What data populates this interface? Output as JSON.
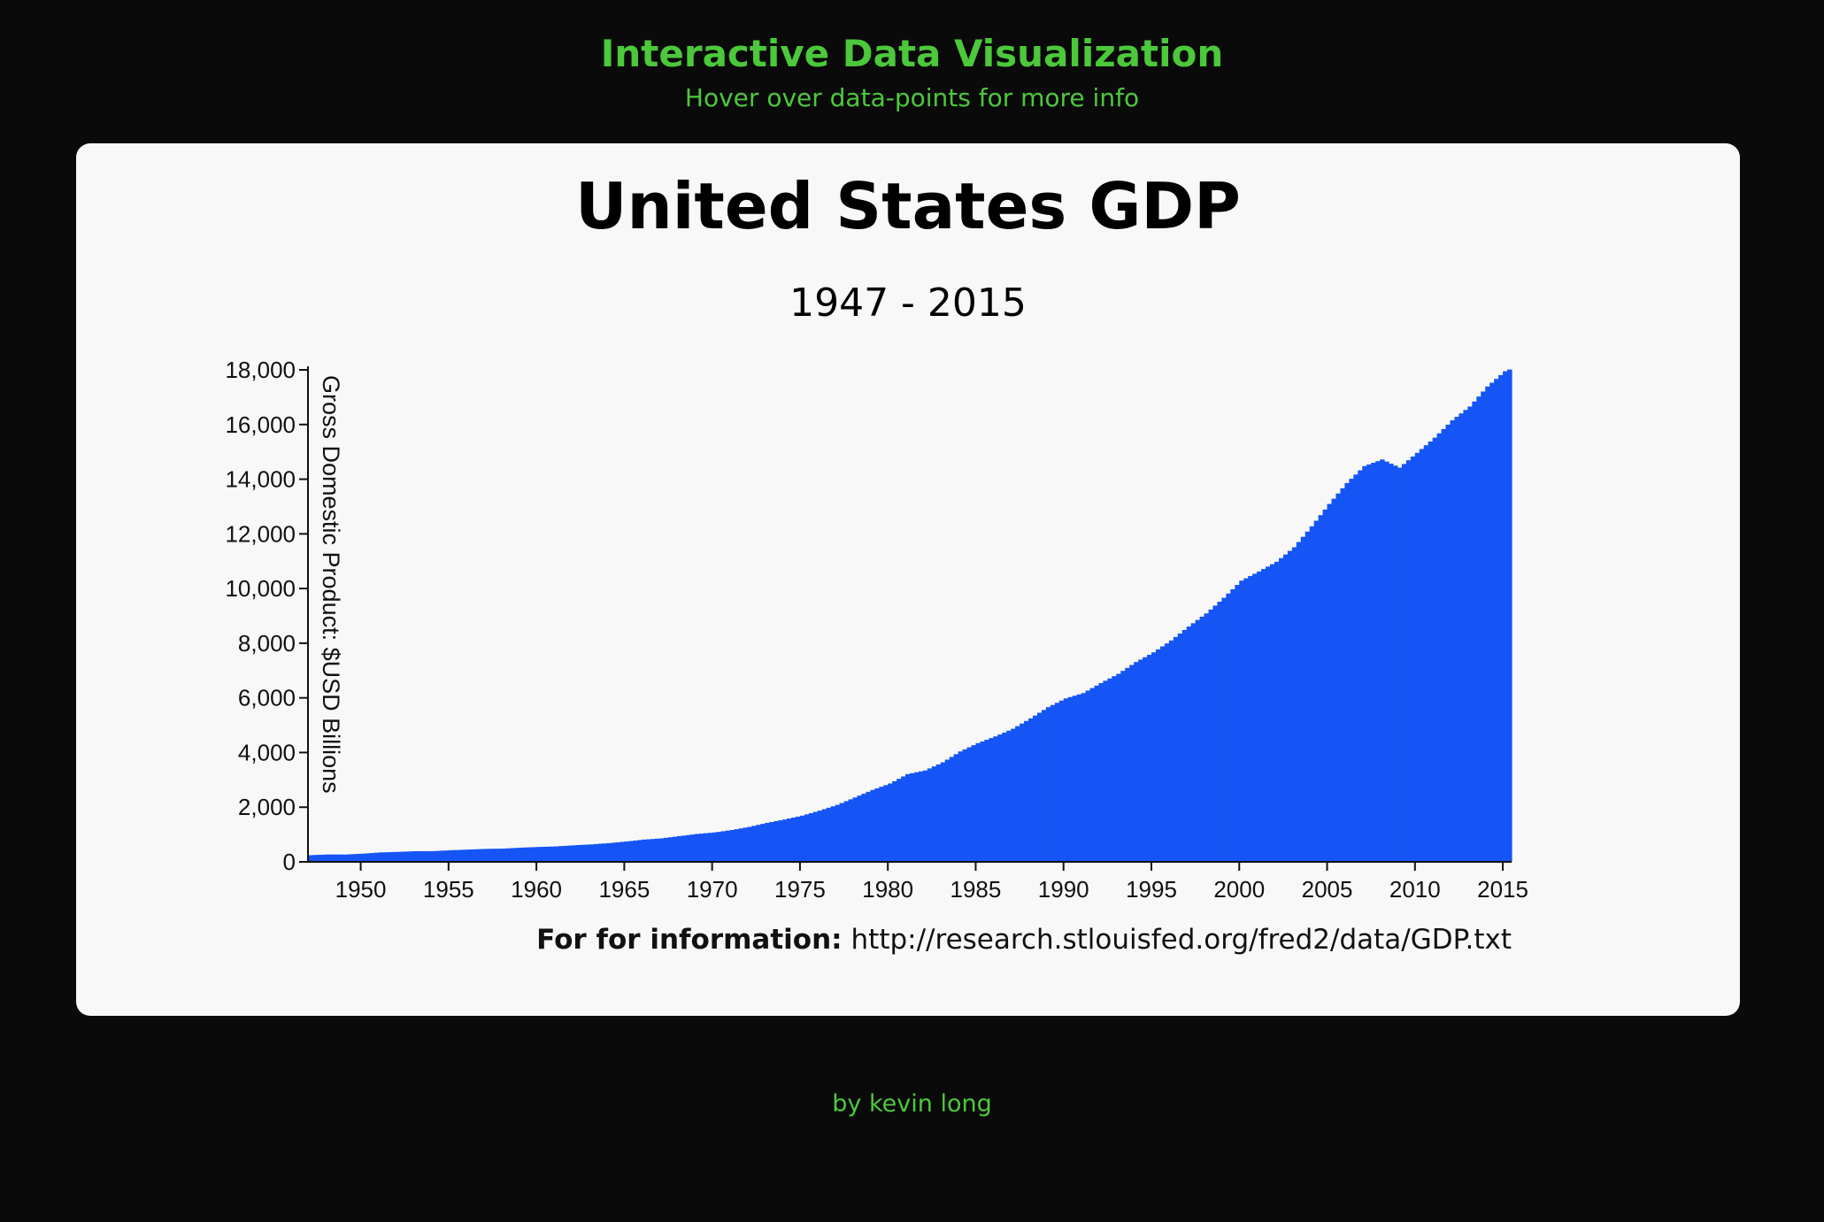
{
  "header": {
    "title": "Interactive Data Visualization",
    "subtitle": "Hover over data-points for more info"
  },
  "footer": {
    "byline": "by kevin long"
  },
  "colors": {
    "background": "#0a0a0a",
    "accent": "#4cc83b",
    "card": "#f8f8f8",
    "bar": "#1655f5"
  },
  "chart_data": {
    "type": "bar",
    "title": "United States GDP",
    "subtitle": "1947 - 2015",
    "ylabel": "Gross Domestic Product: $USD Billions",
    "xlabel": "",
    "xlim": [
      1947,
      2015.5
    ],
    "ylim": [
      0,
      18000
    ],
    "yticks": [
      0,
      2000,
      4000,
      6000,
      8000,
      10000,
      12000,
      14000,
      16000,
      18000
    ],
    "ytick_labels": [
      "0",
      "2,000",
      "4,000",
      "6,000",
      "8,000",
      "10,000",
      "12,000",
      "14,000",
      "16,000",
      "18,000"
    ],
    "xticks": [
      "1950",
      "1955",
      "1960",
      "1965",
      "1970",
      "1975",
      "1980",
      "1985",
      "1990",
      "1995",
      "2000",
      "2005",
      "2010",
      "2015"
    ],
    "frequency": "quarterly",
    "grid": false,
    "legend": "none",
    "source_label": "For for information:",
    "source_url": "http://research.stlouisfed.org/fred2/data/GDP.txt",
    "annual_values": {
      "1947": 245,
      "1948": 270,
      "1949": 268,
      "1950": 300,
      "1951": 345,
      "1952": 365,
      "1953": 390,
      "1954": 392,
      "1955": 425,
      "1956": 450,
      "1957": 475,
      "1958": 485,
      "1959": 520,
      "1960": 545,
      "1961": 565,
      "1962": 605,
      "1963": 640,
      "1964": 685,
      "1965": 745,
      "1966": 815,
      "1967": 860,
      "1968": 940,
      "1969": 1020,
      "1970": 1075,
      "1971": 1165,
      "1972": 1280,
      "1973": 1425,
      "1974": 1550,
      "1975": 1690,
      "1976": 1875,
      "1977": 2085,
      "1978": 2355,
      "1979": 2630,
      "1980": 2865,
      "1981": 3210,
      "1982": 3345,
      "1983": 3640,
      "1984": 4040,
      "1985": 4345,
      "1986": 4590,
      "1987": 4870,
      "1988": 5250,
      "1989": 5660,
      "1990": 5980,
      "1991": 6175,
      "1992": 6540,
      "1993": 6880,
      "1994": 7310,
      "1995": 7665,
      "1996": 8100,
      "1997": 8610,
      "1998": 9090,
      "1999": 9660,
      "2000": 10290,
      "2001": 10625,
      "2002": 10980,
      "2003": 11510,
      "2004": 12275,
      "2005": 13095,
      "2006": 13860,
      "2007": 14480,
      "2008": 14720,
      "2009": 14420,
      "2010": 14965,
      "2011": 15520,
      "2012": 16155,
      "2013": 16660,
      "2014": 17390,
      "2015": 17950,
      "2016": 18200
    }
  }
}
